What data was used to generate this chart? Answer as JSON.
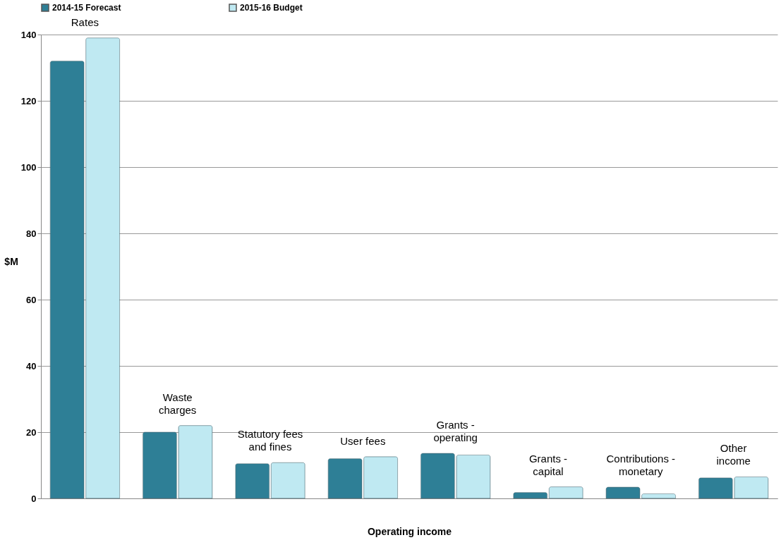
{
  "chart_data": {
    "type": "bar",
    "categories": [
      "Rates",
      "Waste\ncharges",
      "Statutory fees\nand fines",
      "User fees",
      "Grants -\noperating",
      "Grants -\ncapital",
      "Contributions -\nmonetary",
      "Other\nincome"
    ],
    "series": [
      {
        "name": "2014-15 Forecast",
        "color": "#2e7f96",
        "values": [
          132,
          20,
          10.5,
          12,
          13.6,
          1.8,
          3.4,
          6.2
        ]
      },
      {
        "name": "2015-16 Budget",
        "color": "#bfe9f2",
        "values": [
          139,
          22,
          10.8,
          12.6,
          13.1,
          3.5,
          1.4,
          6.5
        ]
      }
    ],
    "xlabel": "Operating income",
    "ylabel": "$M",
    "ylim": [
      0,
      140
    ],
    "yticks": [
      0,
      20,
      40,
      60,
      80,
      100,
      120,
      140
    ],
    "grid": "y",
    "legend": "top",
    "tick_labels": "y"
  }
}
